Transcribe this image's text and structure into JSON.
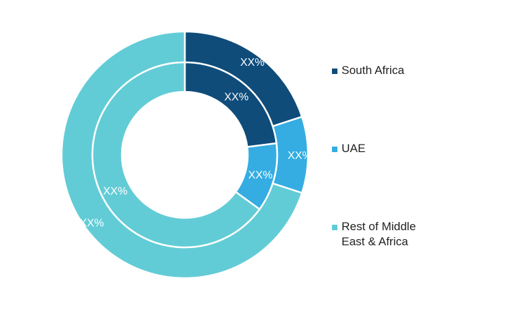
{
  "chart_data": {
    "type": "pie",
    "variant": "double-donut",
    "categories": [
      "South Africa",
      "UAE",
      "Rest of Middle East & Africa"
    ],
    "colors": [
      "#0f4c7a",
      "#35ade3",
      "#62ccd6"
    ],
    "series": [
      {
        "ring": "outer",
        "values": [
          20,
          10,
          70
        ],
        "labels": [
          "XX%",
          "XX%",
          "XX%"
        ]
      },
      {
        "ring": "inner",
        "values": [
          23,
          12,
          65
        ],
        "labels": [
          "XX%",
          "XX%",
          "XX%"
        ]
      }
    ],
    "legend_position": "right",
    "legend": {
      "items": [
        {
          "label_lines": [
            "South Africa"
          ]
        },
        {
          "label_lines": [
            "UAE"
          ]
        },
        {
          "label_lines": [
            "Rest of Middle",
            "East & Africa"
          ]
        }
      ]
    }
  }
}
